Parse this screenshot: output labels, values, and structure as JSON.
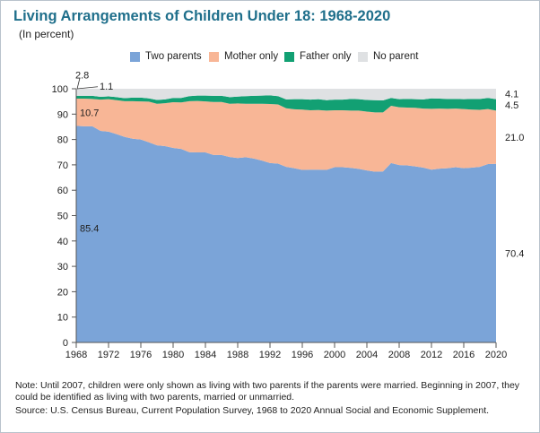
{
  "chart_data": {
    "type": "area",
    "stacked": true,
    "title": "Living Arrangements of Children Under 18: 1968-2020",
    "subtitle": "(In percent)",
    "xlabel": "",
    "ylabel": "",
    "ylim": [
      0,
      100
    ],
    "xlim": [
      1968,
      2020
    ],
    "x_ticks": [
      1968,
      1972,
      1976,
      1980,
      1984,
      1988,
      1992,
      1996,
      2000,
      2004,
      2008,
      2012,
      2016,
      2020
    ],
    "y_ticks": [
      0,
      10,
      20,
      30,
      40,
      50,
      60,
      70,
      80,
      90,
      100
    ],
    "legend_position": "top",
    "grid": false,
    "x": [
      1968,
      1969,
      1970,
      1971,
      1972,
      1973,
      1974,
      1975,
      1976,
      1977,
      1978,
      1979,
      1980,
      1981,
      1982,
      1983,
      1984,
      1985,
      1986,
      1987,
      1988,
      1989,
      1990,
      1991,
      1992,
      1993,
      1994,
      1995,
      1996,
      1997,
      1998,
      1999,
      2000,
      2001,
      2002,
      2003,
      2004,
      2005,
      2006,
      2007,
      2008,
      2009,
      2010,
      2011,
      2012,
      2013,
      2014,
      2015,
      2016,
      2017,
      2018,
      2019,
      2020
    ],
    "series": [
      {
        "name": "Two parents",
        "color": "#7ba4d8",
        "values": [
          85.4,
          85.2,
          85.2,
          83.4,
          83.1,
          82.1,
          81.0,
          80.3,
          80.0,
          78.9,
          77.7,
          77.4,
          76.7,
          76.3,
          75.0,
          74.9,
          74.9,
          73.9,
          73.9,
          73.1,
          72.7,
          73.0,
          72.5,
          71.7,
          70.7,
          70.5,
          69.2,
          68.7,
          68.0,
          68.1,
          68.1,
          68.0,
          69.1,
          69.1,
          68.8,
          68.4,
          67.8,
          67.3,
          67.4,
          70.7,
          69.9,
          69.8,
          69.4,
          68.9,
          68.1,
          68.5,
          68.7,
          69.1,
          68.7,
          68.9,
          69.2,
          70.3,
          70.4
        ]
      },
      {
        "name": "Mother only",
        "color": "#f8b696",
        "values": [
          10.7,
          10.9,
          10.8,
          12.3,
          12.8,
          13.4,
          14.1,
          14.8,
          15.0,
          16.0,
          16.4,
          16.9,
          18.0,
          18.3,
          20.1,
          20.3,
          20.1,
          20.9,
          20.9,
          21.0,
          21.5,
          21.1,
          21.6,
          22.4,
          23.3,
          23.3,
          23.1,
          23.2,
          23.8,
          23.4,
          23.5,
          23.4,
          22.4,
          22.4,
          22.6,
          23.0,
          23.2,
          23.4,
          23.3,
          22.6,
          22.8,
          22.8,
          23.1,
          23.3,
          24.0,
          23.7,
          23.4,
          23.1,
          23.3,
          22.9,
          22.5,
          21.7,
          21.0
        ]
      },
      {
        "name": "Father only",
        "color": "#12a073",
        "values": [
          1.1,
          1.1,
          1.2,
          1.1,
          1.1,
          1.2,
          1.2,
          1.4,
          1.5,
          1.3,
          1.5,
          1.5,
          1.7,
          1.8,
          2.0,
          2.1,
          2.3,
          2.4,
          2.4,
          2.6,
          2.7,
          3.0,
          3.1,
          3.2,
          3.4,
          3.3,
          3.5,
          4.0,
          4.1,
          4.2,
          4.3,
          4.1,
          4.2,
          4.2,
          4.6,
          4.5,
          4.6,
          4.8,
          4.7,
          3.1,
          3.2,
          3.4,
          3.4,
          3.6,
          4.1,
          3.9,
          3.9,
          3.8,
          3.9,
          4.2,
          4.3,
          4.4,
          4.5
        ]
      },
      {
        "name": "No parent",
        "color": "#dfe1e3",
        "values": [
          2.8,
          2.8,
          2.8,
          3.2,
          3.0,
          3.3,
          3.7,
          3.5,
          3.5,
          3.8,
          4.4,
          4.2,
          3.6,
          3.6,
          2.9,
          2.7,
          2.7,
          2.8,
          2.8,
          3.3,
          3.1,
          2.9,
          2.8,
          2.7,
          2.6,
          2.9,
          4.2,
          4.1,
          4.1,
          4.3,
          4.1,
          4.5,
          4.3,
          4.3,
          4.0,
          4.1,
          4.4,
          4.5,
          4.6,
          3.6,
          4.1,
          4.0,
          4.1,
          4.2,
          3.8,
          3.9,
          4.0,
          4.0,
          4.1,
          4.0,
          4.0,
          3.6,
          4.1
        ]
      }
    ],
    "annotations": {
      "left": [
        {
          "series": "Two parents",
          "text": "85.4",
          "y": 45.0
        },
        {
          "series": "Mother only",
          "text": "10.7",
          "y": 90.7
        },
        {
          "series": "Father only",
          "text": "1.1",
          "y": 101.0
        },
        {
          "series": "No parent",
          "text": "2.8",
          "y": 105.4
        }
      ],
      "right": [
        {
          "series": "Two parents",
          "text": "70.4",
          "y": 35.2
        },
        {
          "series": "Mother only",
          "text": "21.0",
          "y": 80.9
        },
        {
          "series": "Father only",
          "text": "4.5",
          "y": 93.6
        },
        {
          "series": "No parent",
          "text": "4.1",
          "y": 98.0
        }
      ]
    }
  },
  "notes": {
    "note": "Note: Until 2007, children were only shown as living with two parents if the parents were married. Beginning in 2007, they could be identified as living with two parents, married or unmarried.",
    "source": "Source: U.S. Census Bureau, Current Population Survey, 1968 to 2020 Annual Social and Economic Supplement."
  }
}
